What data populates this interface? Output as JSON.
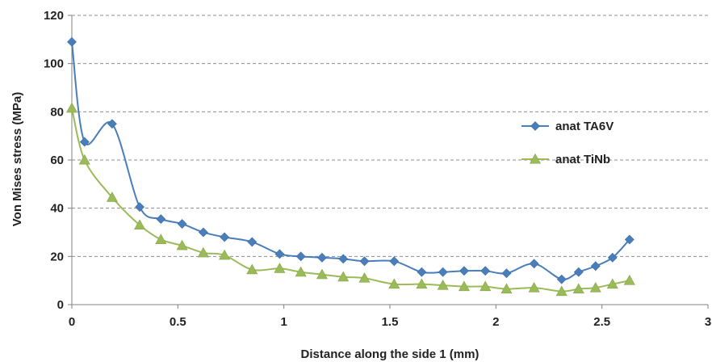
{
  "chart_data": {
    "type": "line",
    "title": "",
    "xlabel": "Distance along the side 1 (mm)",
    "ylabel": "Von Mises stress (MPa)",
    "xlim": [
      0,
      3
    ],
    "ylim": [
      0,
      120
    ],
    "xticks": [
      0,
      0.5,
      1,
      1.5,
      2,
      2.5,
      3
    ],
    "yticks": [
      0,
      20,
      40,
      60,
      80,
      100,
      120
    ],
    "xtick_labels": [
      "0",
      "0.5",
      "1",
      "1.5",
      "2",
      "2.5",
      "3"
    ],
    "ytick_labels": [
      "0",
      "20",
      "40",
      "60",
      "80",
      "100",
      "120"
    ],
    "grid": "horizontal dashed",
    "legend": "right",
    "series": [
      {
        "name": "anat TA6V",
        "color": "#4a7ebb",
        "marker": "diamond",
        "x": [
          0,
          0.06,
          0.19,
          0.32,
          0.42,
          0.52,
          0.62,
          0.72,
          0.85,
          0.98,
          1.08,
          1.18,
          1.28,
          1.38,
          1.52,
          1.65,
          1.75,
          1.85,
          1.95,
          2.05,
          2.18,
          2.31,
          2.39,
          2.47,
          2.55,
          2.63
        ],
        "y": [
          109,
          67.5,
          75,
          40.5,
          35.5,
          33.5,
          30,
          28,
          26,
          21,
          20,
          19.5,
          19,
          18,
          18,
          13.5,
          13.5,
          14,
          14,
          13,
          17,
          10.5,
          13.5,
          16,
          19.5,
          27
        ]
      },
      {
        "name": "anat TiNb",
        "color": "#9bbb59",
        "marker": "triangle",
        "x": [
          0,
          0.06,
          0.19,
          0.32,
          0.42,
          0.52,
          0.62,
          0.72,
          0.85,
          0.98,
          1.08,
          1.18,
          1.28,
          1.38,
          1.52,
          1.65,
          1.75,
          1.85,
          1.95,
          2.05,
          2.18,
          2.31,
          2.39,
          2.47,
          2.55,
          2.63
        ],
        "y": [
          81.5,
          60,
          44.5,
          33,
          27,
          24.5,
          21.5,
          20.5,
          14.5,
          15,
          13.5,
          12.5,
          11.5,
          11,
          8.5,
          8.5,
          8,
          7.5,
          7.5,
          6.5,
          7,
          5.5,
          6.5,
          7,
          8.5,
          10
        ]
      }
    ]
  }
}
